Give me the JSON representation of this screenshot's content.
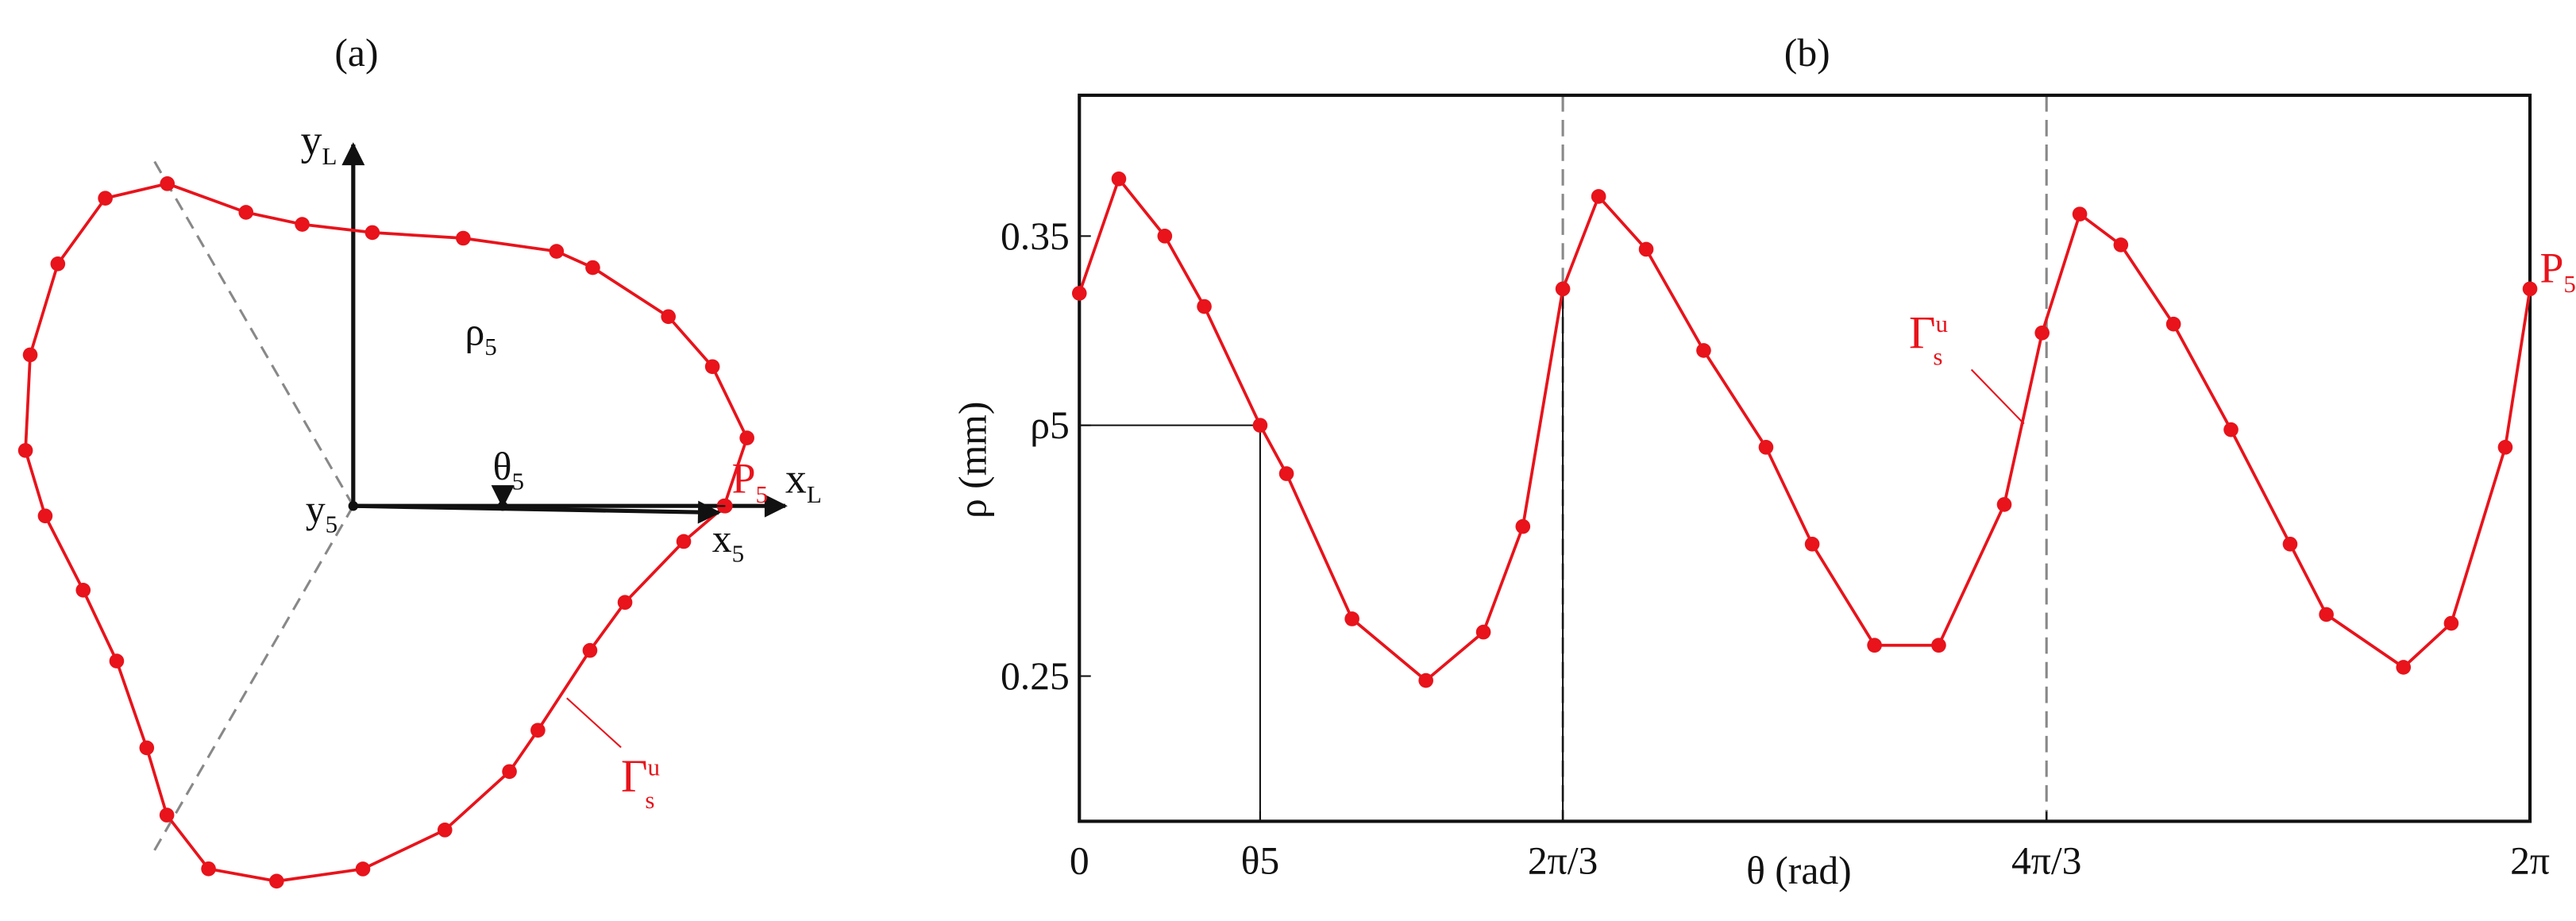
{
  "chart_data": [
    {
      "type": "polar",
      "title": "(a)",
      "x_axis_label": {
        "text": "x",
        "sub": "L"
      },
      "y_axis_label": {
        "text": "y",
        "sub": "L"
      },
      "point_label": {
        "text": "P",
        "sub": "5"
      },
      "radius_label": {
        "text": "ρ",
        "sub": "5"
      },
      "angle_label": {
        "text": "θ",
        "sub": "5"
      },
      "x_proj_label": {
        "text": "x",
        "sub": "5"
      },
      "y_proj_label": {
        "text": "y",
        "sub": "5"
      },
      "curve_label": {
        "text": "Γ",
        "sub": "s",
        "sup": "u"
      }
    },
    {
      "type": "line",
      "title": "(b)",
      "x_label": "θ (rad)",
      "y_label": "ρ (mm)",
      "color": "#e8131b",
      "x": [
        0,
        0.171,
        0.37,
        0.541,
        0.783,
        0.897,
        1.181,
        1.501,
        1.75,
        1.921,
        2.094,
        2.249,
        2.455,
        2.704,
        2.974,
        3.174,
        3.444,
        3.722,
        4.006,
        4.17,
        4.333,
        4.511,
        4.739,
        4.988,
        5.244,
        5.401,
        5.735,
        5.942,
        6.176,
        6.283
      ],
      "values": [
        0.337,
        0.363,
        0.35,
        0.334,
        0.307,
        0.296,
        0.263,
        0.249,
        0.26,
        0.284,
        0.338,
        0.359,
        0.347,
        0.324,
        0.302,
        0.28,
        0.257,
        0.257,
        0.289,
        0.328,
        0.355,
        0.348,
        0.33,
        0.306,
        0.28,
        0.264,
        0.252,
        0.262,
        0.302,
        0.338
      ],
      "xlim": [
        0,
        6.283
      ],
      "ylim": [
        0.217,
        0.382
      ],
      "xticks": [
        0,
        {
          "value": 0.783,
          "label": "θ5"
        },
        {
          "value": 2.094,
          "label": "2π/3"
        },
        {
          "value": 4.189,
          "label": "4π/3"
        },
        {
          "value": 6.283,
          "label": "2π"
        }
      ],
      "yticks": [
        0.25,
        {
          "value": 0.307,
          "label": "ρ5"
        },
        0.35
      ],
      "vlines": [
        2.094,
        4.189
      ],
      "point_label": {
        "text": "P",
        "sub": "5"
      },
      "curve_label": {
        "text": "Γ",
        "sub": "s",
        "sup": "u"
      }
    }
  ]
}
